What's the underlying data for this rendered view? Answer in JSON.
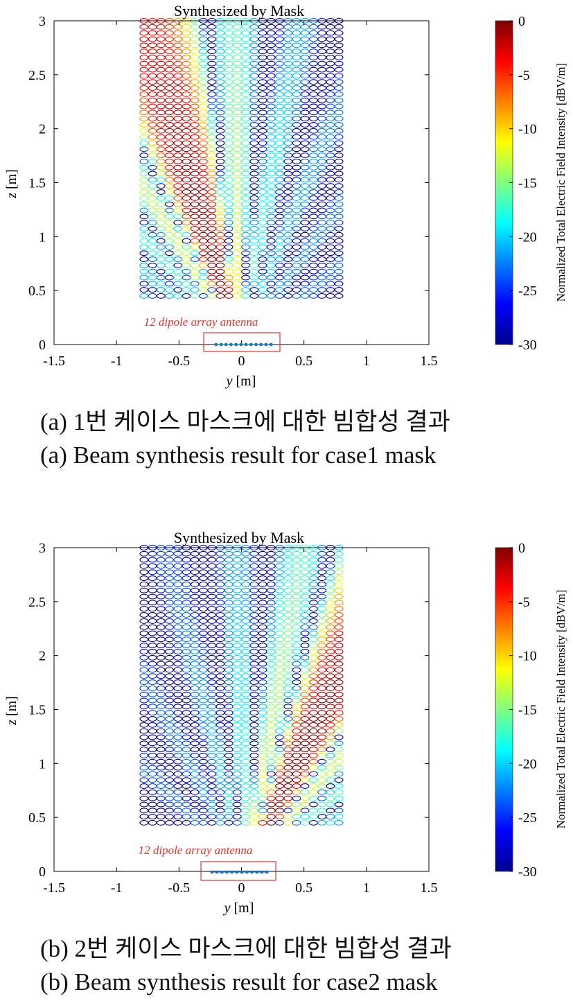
{
  "chart_data": [
    {
      "type": "scatter",
      "title": "Synthesized by Mask",
      "xlabel_var": "y",
      "xlabel_unit": " [m]",
      "ylabel_var": "z",
      "ylabel_unit": " [m]",
      "xlim": [
        -1.5,
        1.5
      ],
      "ylim": [
        0,
        3
      ],
      "xticks": [
        "-1.5",
        "-1",
        "-0.5",
        "0",
        "0.5",
        "1",
        "1.5"
      ],
      "yticks": [
        "0",
        "0.5",
        "1",
        "1.5",
        "2",
        "2.5",
        "3"
      ],
      "grid_y_range": [
        -0.78,
        0.78
      ],
      "grid_z_range": [
        0.45,
        3.0
      ],
      "beam_center_y": -0.08,
      "beam_tilt_deg": -14,
      "antenna_label": "12 dipole array antenna",
      "antenna_element_y": [
        -0.22,
        -0.18,
        -0.14,
        -0.1,
        -0.06,
        -0.02,
        0.02,
        0.06,
        0.1,
        0.14,
        0.18,
        0.22
      ],
      "colorbar": {
        "label": "Normalized Total Electric Field Intensity [dBV/m]",
        "min": -30,
        "max": 0,
        "ticks": [
          "0",
          "-5",
          "-10",
          "-15",
          "-20",
          "-25",
          "-30"
        ],
        "colormap": "jet"
      },
      "annotation_box_color": "#e8322c",
      "antenna_color": "#1f77b4"
    },
    {
      "type": "scatter",
      "title": "Synthesized by Mask",
      "xlabel_var": "y",
      "xlabel_unit": " [m]",
      "ylabel_var": "z",
      "ylabel_unit": " [m]",
      "xlim": [
        -1.5,
        1.5
      ],
      "ylim": [
        0,
        3
      ],
      "xticks": [
        "-1.5",
        "-1",
        "-0.5",
        "0",
        "0.5",
        "1",
        "1.5"
      ],
      "yticks": [
        "0",
        "0.5",
        "1",
        "1.5",
        "2",
        "2.5",
        "3"
      ],
      "grid_y_range": [
        -0.78,
        0.78
      ],
      "grid_z_range": [
        0.45,
        3.0
      ],
      "beam_center_y": 0.12,
      "beam_tilt_deg": 22,
      "antenna_label": "12 dipole array antenna",
      "antenna_element_y": [
        -0.22,
        -0.18,
        -0.14,
        -0.1,
        -0.06,
        -0.02,
        0.02,
        0.06,
        0.1,
        0.14,
        0.18,
        0.22
      ],
      "colorbar": {
        "label": "Normalized Total Electric Field Intensity [dBV/m]",
        "min": -30,
        "max": 0,
        "ticks": [
          "0",
          "-5",
          "-10",
          "-15",
          "-20",
          "-25",
          "-30"
        ],
        "colormap": "jet"
      },
      "annotation_box_color": "#e8322c",
      "antenna_color": "#1f77b4"
    }
  ],
  "captions": {
    "a_ko": "(a) 1번 케이스 마스크에 대한 빔합성 결과",
    "a_en": "(a) Beam synthesis result for case1 mask",
    "b_ko": "(b) 2번 케이스 마스크에 대한 빔합성 결과",
    "b_en": "(b) Beam synthesis result for case2 mask"
  }
}
